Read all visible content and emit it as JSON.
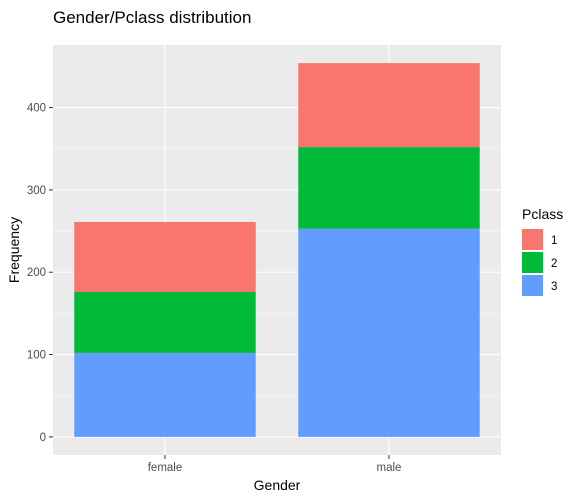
{
  "chart_data": {
    "type": "bar",
    "stacked": true,
    "title": "Gender/Pclass distribution",
    "xlabel": "Gender",
    "ylabel": "Frequency",
    "categories": [
      "female",
      "male"
    ],
    "series": [
      {
        "name": "1",
        "values": [
          85,
          102
        ],
        "color": "#F8766D"
      },
      {
        "name": "2",
        "values": [
          74,
          99
        ],
        "color": "#00BA38"
      },
      {
        "name": "3",
        "values": [
          102,
          253
        ],
        "color": "#619CFF"
      }
    ],
    "stack_order_bottom_to_top": [
      "3",
      "2",
      "1"
    ],
    "ylim": [
      -22,
      476
    ],
    "yticks": [
      0,
      100,
      200,
      300,
      400
    ],
    "legend": {
      "title": "Pclass",
      "position": "right"
    },
    "grid": true,
    "panel_background": "#EBEBEB"
  }
}
